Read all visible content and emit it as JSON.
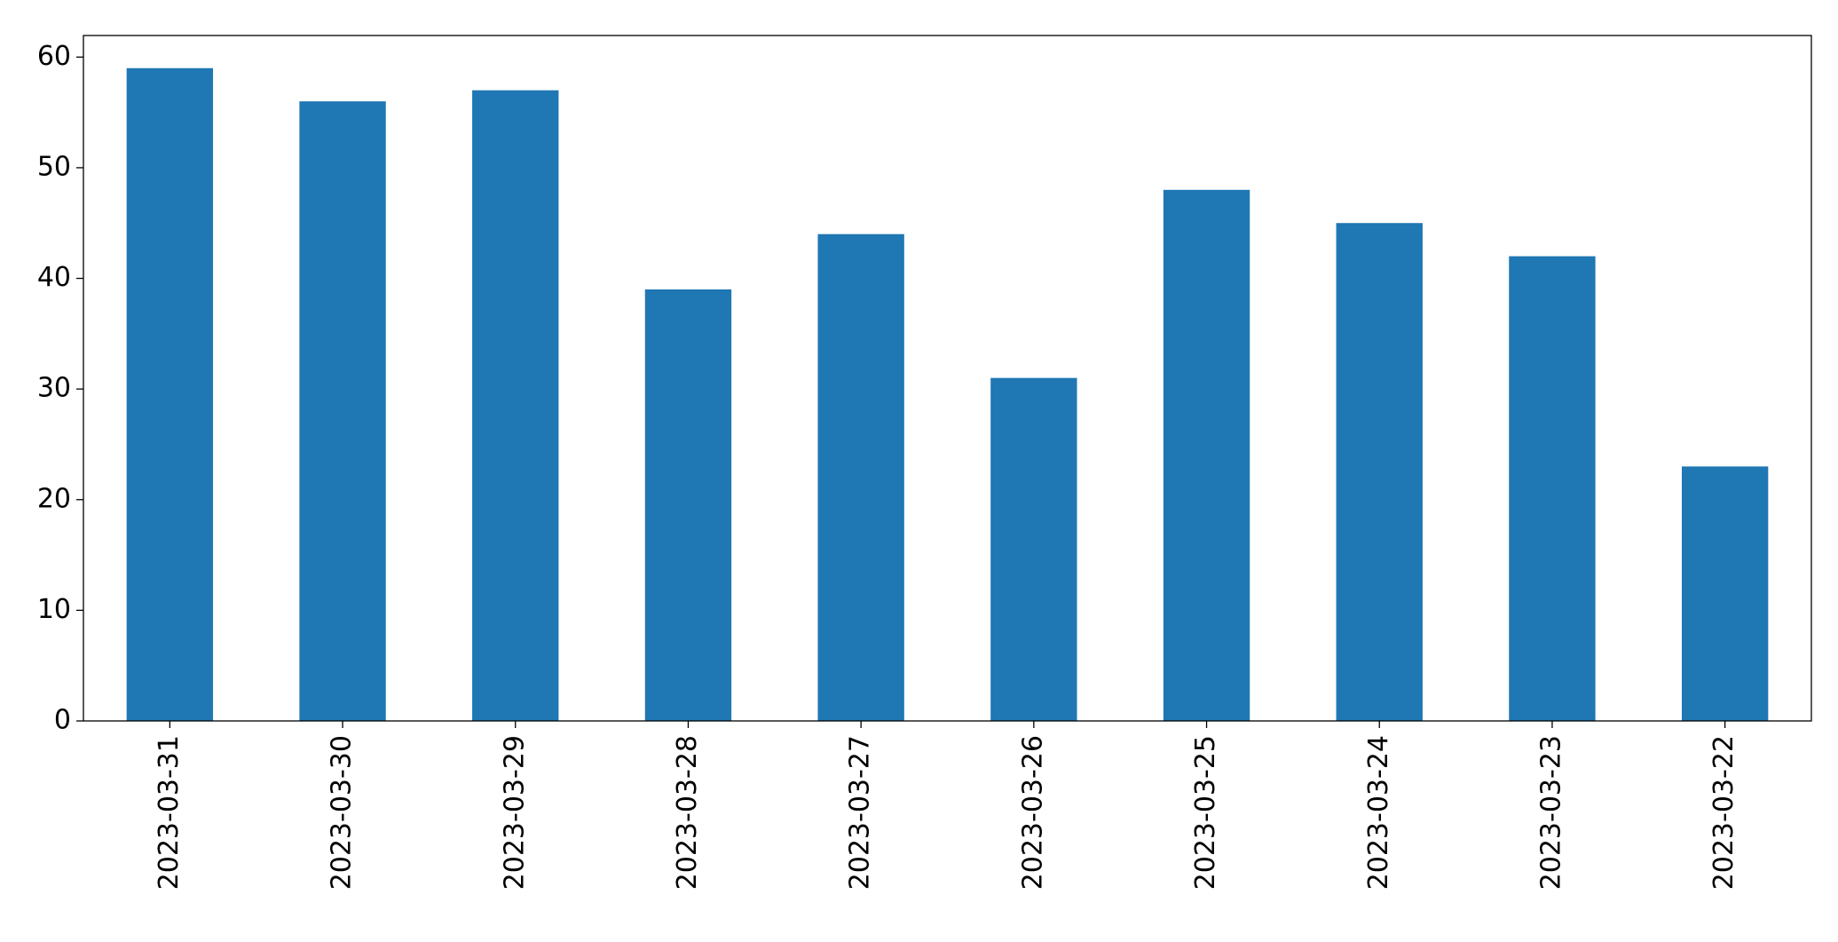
{
  "chart_data": {
    "type": "bar",
    "categories": [
      "2023-03-31",
      "2023-03-30",
      "2023-03-29",
      "2023-03-28",
      "2023-03-27",
      "2023-03-26",
      "2023-03-25",
      "2023-03-24",
      "2023-03-23",
      "2023-03-22"
    ],
    "values": [
      59,
      56,
      57,
      39,
      44,
      31,
      48,
      45,
      42,
      23
    ],
    "color": "#1f77b4",
    "ylim": [
      0,
      61.95
    ],
    "yticks": [
      0,
      10,
      20,
      30,
      40,
      50,
      60
    ],
    "grid": false
  }
}
